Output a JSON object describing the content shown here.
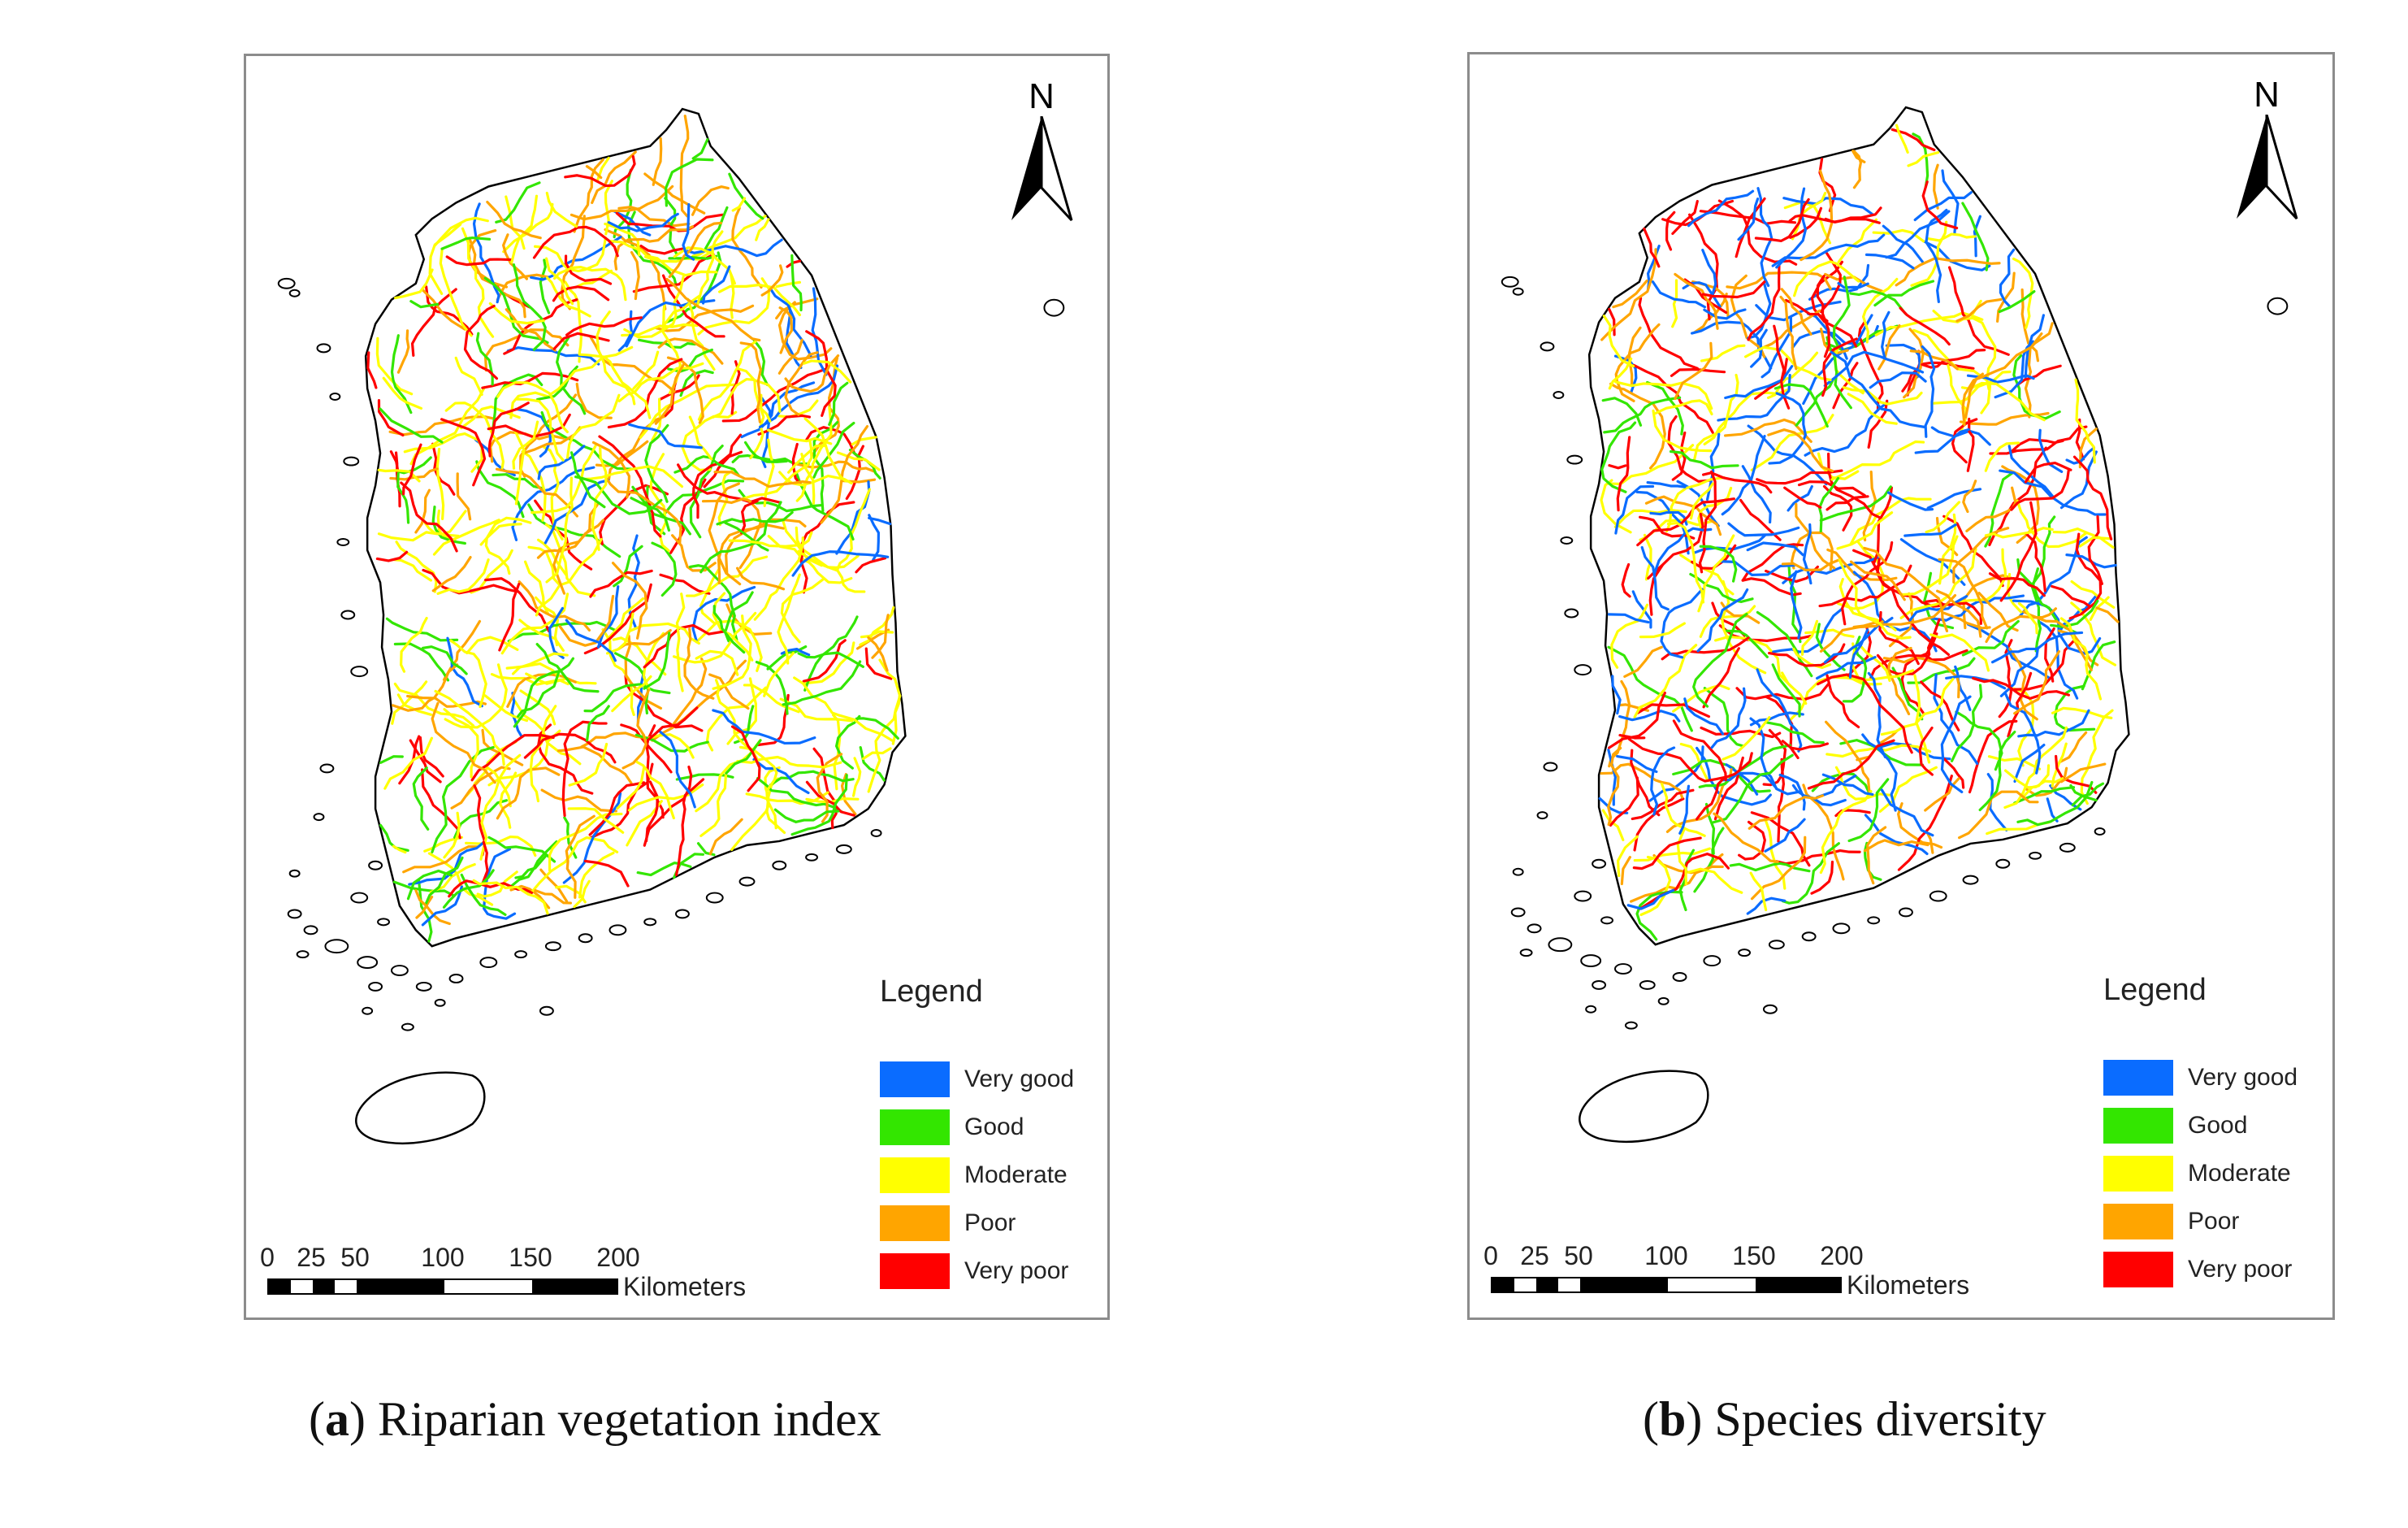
{
  "panels": [
    {
      "id": "a",
      "caption_letter": "a",
      "caption_text": "Riparian vegetation index",
      "north_label": "N",
      "legend_title": "Legend",
      "legend_items": [
        {
          "label": "Very good",
          "color": "#0a6cff"
        },
        {
          "label": "Good",
          "color": "#33e600"
        },
        {
          "label": "Moderate",
          "color": "#ffff00"
        },
        {
          "label": "Poor",
          "color": "#ffa500"
        },
        {
          "label": "Very poor",
          "color": "#ff0000"
        }
      ],
      "scale_ticks": [
        "0",
        "25",
        "50",
        "100",
        "150",
        "200"
      ],
      "scale_unit": "Kilometers",
      "class_mix": {
        "Very good": 0.07,
        "Good": 0.2,
        "Moderate": 0.38,
        "Poor": 0.2,
        "Very poor": 0.15
      }
    },
    {
      "id": "b",
      "caption_letter": "b",
      "caption_text": "Species diversity",
      "north_label": "N",
      "legend_title": "Legend",
      "legend_items": [
        {
          "label": "Very good",
          "color": "#0a6cff"
        },
        {
          "label": "Good",
          "color": "#33e600"
        },
        {
          "label": "Moderate",
          "color": "#ffff00"
        },
        {
          "label": "Poor",
          "color": "#ffa500"
        },
        {
          "label": "Very poor",
          "color": "#ff0000"
        }
      ],
      "scale_ticks": [
        "0",
        "25",
        "50",
        "100",
        "150",
        "200"
      ],
      "scale_unit": "Kilometers",
      "class_mix": {
        "Very good": 0.25,
        "Good": 0.12,
        "Moderate": 0.22,
        "Poor": 0.18,
        "Very poor": 0.23
      }
    }
  ]
}
